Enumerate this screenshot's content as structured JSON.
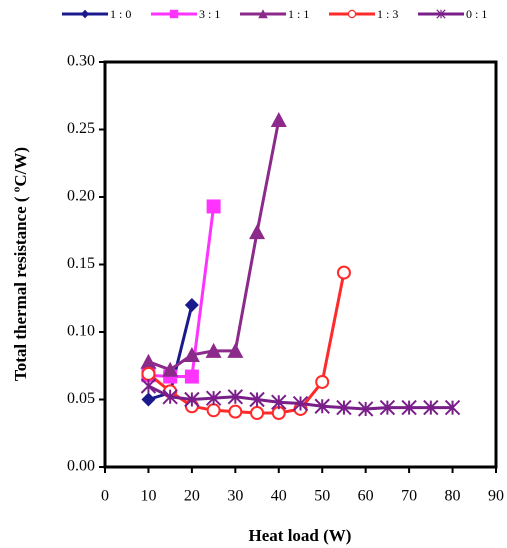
{
  "chart_data": {
    "type": "line",
    "xlabel": "Heat load (W)",
    "ylabel": "Total thermal resistance ( ºC/W)",
    "xlim": [
      0,
      90
    ],
    "xticks": [
      0,
      10,
      20,
      30,
      40,
      50,
      60,
      70,
      80,
      90
    ],
    "ylim": [
      0,
      0.3
    ],
    "yticks": [
      {
        "value": 0,
        "label": "0.00"
      },
      {
        "value": 0.05,
        "label": "0.05"
      },
      {
        "value": 0.1,
        "label": "0.10"
      },
      {
        "value": 0.15,
        "label": "0.15"
      },
      {
        "value": 0.2,
        "label": "0.20"
      },
      {
        "value": 0.25,
        "label": "0.25"
      },
      {
        "value": 0.3,
        "label": "0.30"
      }
    ],
    "legend": "top",
    "series": [
      {
        "name": "1 : 0",
        "color": "#1a1a8c",
        "marker": "diamond",
        "x": [
          10,
          15,
          20
        ],
        "values": [
          0.05,
          0.055,
          0.12
        ]
      },
      {
        "name": "3 : 1",
        "color": "#ff33ff",
        "marker": "square",
        "x": [
          10,
          15,
          20,
          25
        ],
        "values": [
          0.068,
          0.067,
          0.067,
          0.193
        ]
      },
      {
        "name": "1 : 1",
        "color": "#8b2a8b",
        "marker": "triangle",
        "x": [
          10,
          15,
          20,
          25,
          30,
          35,
          40
        ],
        "values": [
          0.078,
          0.072,
          0.083,
          0.086,
          0.086,
          0.174,
          0.257
        ]
      },
      {
        "name": "1 : 3",
        "color": "#ff2a2a",
        "marker": "circle",
        "x": [
          10,
          15,
          20,
          25,
          30,
          35,
          40,
          45,
          50,
          55
        ],
        "values": [
          0.069,
          0.056,
          0.045,
          0.042,
          0.041,
          0.04,
          0.04,
          0.043,
          0.063,
          0.144
        ]
      },
      {
        "name": "0 : 1",
        "color": "#7a1f8a",
        "marker": "star",
        "x": [
          10,
          15,
          20,
          25,
          30,
          35,
          40,
          45,
          50,
          55,
          60,
          65,
          70,
          75,
          80
        ],
        "values": [
          0.06,
          0.052,
          0.05,
          0.051,
          0.052,
          0.05,
          0.048,
          0.047,
          0.045,
          0.044,
          0.043,
          0.044,
          0.044,
          0.044,
          0.044
        ]
      }
    ]
  }
}
